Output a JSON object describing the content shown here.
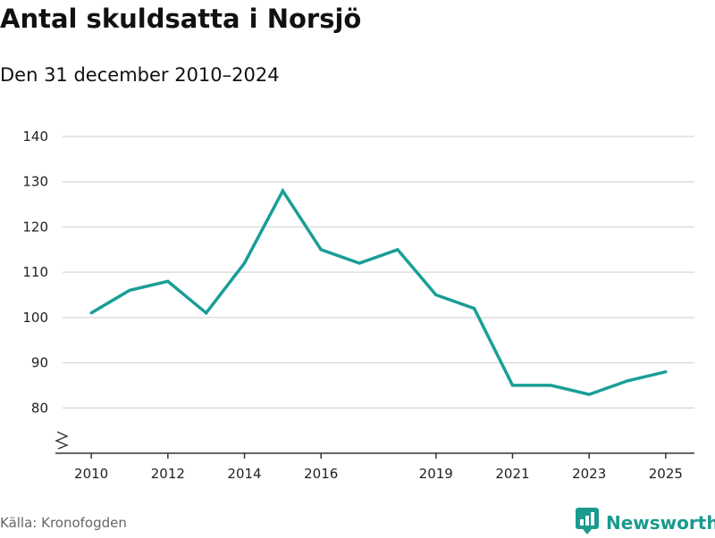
{
  "header": {
    "title": "Antal skuldsatta i Norsjö",
    "subtitle": "Den 31 december 2010–2024"
  },
  "footer": {
    "source": "Källa: Kronofogden",
    "brand": "Newsworthy",
    "brand_icon": "newsworthy-logo-icon"
  },
  "colors": {
    "line": "#1a9e96",
    "grid": "#dddddd",
    "axis": "#333333",
    "brand": "#1b9a8e"
  },
  "chart_data": {
    "type": "line",
    "title": "Antal skuldsatta i Norsjö",
    "subtitle": "Den 31 december 2010–2024",
    "xlabel": "",
    "ylabel": "",
    "xlim": [
      2009.25,
      2025.75
    ],
    "ylim": [
      70,
      140
    ],
    "y_axis_break": true,
    "grid": true,
    "x_ticks": [
      2010,
      2012,
      2014,
      2016,
      2019,
      2021,
      2023,
      2025
    ],
    "y_ticks": [
      80,
      90,
      100,
      110,
      120,
      130,
      140
    ],
    "series": [
      {
        "name": "Antal skuldsatta",
        "x": [
          2010,
          2011,
          2012,
          2013,
          2014,
          2015,
          2016,
          2017,
          2018,
          2019,
          2020,
          2021,
          2022,
          2023,
          2024,
          2025
        ],
        "values": [
          101,
          106,
          108,
          101,
          112,
          128,
          115,
          112,
          115,
          105,
          102,
          85,
          85,
          83,
          86,
          88
        ]
      }
    ]
  }
}
